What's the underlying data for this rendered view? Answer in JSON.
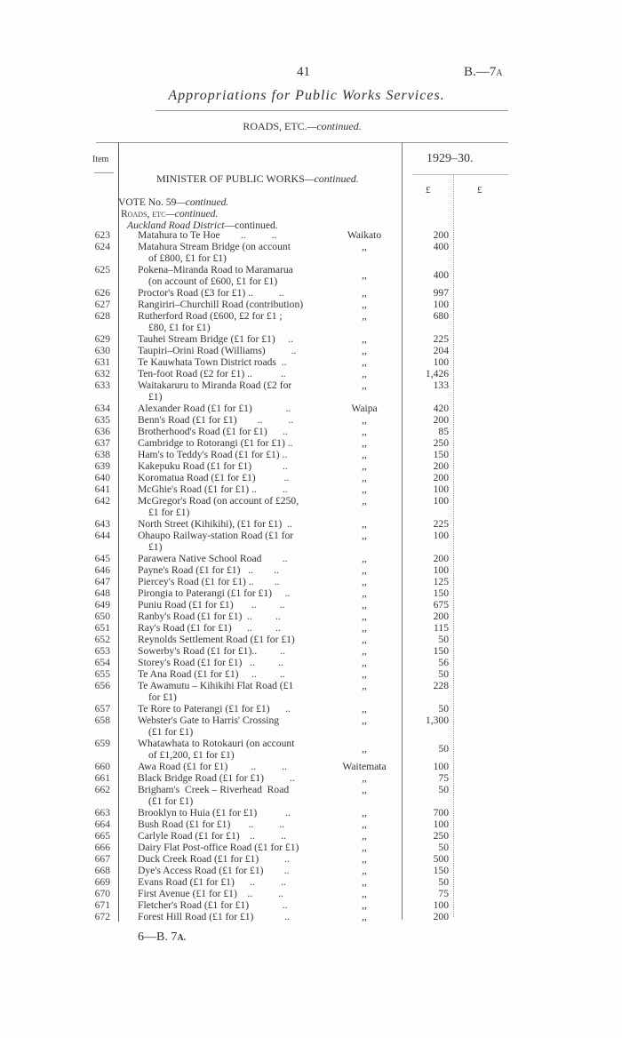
{
  "header": {
    "page_number": "41",
    "doc_ref": "B.—7",
    "doc_ref_suffix": "A"
  },
  "title": "Appropriations for Public Works Services.",
  "subtitle_main": "ROADS, ETC.",
  "subtitle_cont": "—continued.",
  "table": {
    "item_header": "Item",
    "year_header": "1929–30.",
    "currency_1": "£",
    "currency_2": "£",
    "minister": "MINISTER OF PUBLIC WORKS",
    "minister_cont": "—continued.",
    "vote": "VOTE No. 59",
    "vote_cont": "—continued.",
    "section": "Roads, etc",
    "section_cont": "—continued.",
    "district_heading": "Auckland Road District",
    "district_heading_cont": "—continued.",
    "rows": [
      {
        "item": "623",
        "lines": [
          "Matahura to Te Hoe        ..          .."
        ],
        "district": "Waikato",
        "amount": "200"
      },
      {
        "item": "624",
        "lines": [
          "Matahura Stream Bridge (on account",
          "of £800, £1 for £1)"
        ],
        "district": ",,",
        "amount": "400"
      },
      {
        "item": "625",
        "lines": [
          "Pokena–Miranda Road to Maramarua",
          "(on account of £600, £1 for £1)"
        ],
        "district": ",,",
        "amount": "400",
        "mid": true
      },
      {
        "item": "626",
        "lines": [
          "Proctor's Road (£3 for £1) ..          .."
        ],
        "district": ",,",
        "amount": "997"
      },
      {
        "item": "627",
        "lines": [
          "Rangiriri–Churchill Road (contribution)"
        ],
        "district": ",,",
        "amount": "100"
      },
      {
        "item": "628",
        "lines": [
          "Rutherford Road (£600, £2 for £1 ;",
          "£80, £1 for £1)"
        ],
        "district": ",,",
        "amount": "680"
      },
      {
        "item": "629",
        "lines": [
          "Tauhei Stream Bridge (£1 for £1)     .."
        ],
        "district": ",,",
        "amount": "225"
      },
      {
        "item": "630",
        "lines": [
          "Taupiri–Orini Road (Williams)          .."
        ],
        "district": ",,",
        "amount": "204"
      },
      {
        "item": "631",
        "lines": [
          "Te Kauwhata Town District roads  .."
        ],
        "district": ",,",
        "amount": "100"
      },
      {
        "item": "632",
        "lines": [
          "Ten-foot Road (£2 for £1) ..           .."
        ],
        "district": ",,",
        "amount": "1,426"
      },
      {
        "item": "633",
        "lines": [
          "Waitakaruru to Miranda Road (£2 for",
          "£1)"
        ],
        "district": ",,",
        "amount": "133"
      },
      {
        "item": "634",
        "lines": [
          "Alexander Road (£1 for £1)             .."
        ],
        "district": "Waipa",
        "amount": "420"
      },
      {
        "item": "635",
        "lines": [
          "Benn's Road (£1 for £1)        ..          .."
        ],
        "district": ",,",
        "amount": "200"
      },
      {
        "item": "636",
        "lines": [
          "Brotherhood's Road (£1 for £1)      .."
        ],
        "district": ",,",
        "amount": "85"
      },
      {
        "item": "637",
        "lines": [
          "Cambridge to Rotorangi (£1 for £1) .."
        ],
        "district": ",,",
        "amount": "250"
      },
      {
        "item": "638",
        "lines": [
          "Ham's to Teddy's Road (£1 for £1) .."
        ],
        "district": ",,",
        "amount": "150"
      },
      {
        "item": "639",
        "lines": [
          "Kakepuku Road (£1 for £1)            .."
        ],
        "district": ",,",
        "amount": "200"
      },
      {
        "item": "640",
        "lines": [
          "Koromatua Road (£1 for £1)           .."
        ],
        "district": ",,",
        "amount": "200"
      },
      {
        "item": "641",
        "lines": [
          "McGhie's Road (£1 for £1) ..          .."
        ],
        "district": ",,",
        "amount": "100"
      },
      {
        "item": "642",
        "lines": [
          "McGregor's Road (on account of £250,",
          "£1 for £1)"
        ],
        "district": ",,",
        "amount": "100"
      },
      {
        "item": "643",
        "lines": [
          "North Street (Kihikihi), (£1 for £1)  .."
        ],
        "district": ",,",
        "amount": "225"
      },
      {
        "item": "644",
        "lines": [
          "Ohaupo Railway-station Road (£1 for",
          "£1)"
        ],
        "district": ",,",
        "amount": "100"
      },
      {
        "item": "645",
        "lines": [
          "Parawera Native School Road        .."
        ],
        "district": ",,",
        "amount": "200"
      },
      {
        "item": "646",
        "lines": [
          "Payne's Road (£1 for £1)   ..        .."
        ],
        "district": ",,",
        "amount": "100"
      },
      {
        "item": "647",
        "lines": [
          "Piercey's Road (£1 for £1) ..        .."
        ],
        "district": ",,",
        "amount": "125"
      },
      {
        "item": "648",
        "lines": [
          "Pirongia to Paterangi (£1 for £1)     .."
        ],
        "district": ",,",
        "amount": "150"
      },
      {
        "item": "649",
        "lines": [
          "Puniu Road (£1 for £1)       ..         .."
        ],
        "district": ",,",
        "amount": "675"
      },
      {
        "item": "650",
        "lines": [
          "Ranby's Road (£1 for £1)  ..         .."
        ],
        "district": ",,",
        "amount": "200"
      },
      {
        "item": "651",
        "lines": [
          "Ray's Road (£1 for £1)      ..         .."
        ],
        "district": ",,",
        "amount": "115"
      },
      {
        "item": "652",
        "lines": [
          "Reynolds Settlement Road (£1 for £1)"
        ],
        "district": ",,",
        "amount": "50"
      },
      {
        "item": "653",
        "lines": [
          "Sowerby's Road (£1 for £1)..         .."
        ],
        "district": ",,",
        "amount": "150"
      },
      {
        "item": "654",
        "lines": [
          "Storey's Road (£1 for £1)   ..         .."
        ],
        "district": ",,",
        "amount": "56"
      },
      {
        "item": "655",
        "lines": [
          "Te Ana Road (£1 for £1)     ..         .."
        ],
        "district": ",,",
        "amount": "50"
      },
      {
        "item": "656",
        "lines": [
          "Te Awamutu – Kihikihi Flat Road (£1",
          "for £1)"
        ],
        "district": ",,",
        "amount": "228"
      },
      {
        "item": "657",
        "lines": [
          "Te Rore to Paterangi (£1 for £1)      .."
        ],
        "district": ",,",
        "amount": "50"
      },
      {
        "item": "658",
        "lines": [
          "Webster's Gate to Harris' Crossing",
          "(£1 for £1)"
        ],
        "district": ",,",
        "amount": "1,300"
      },
      {
        "item": "659",
        "lines": [
          "Whatawhata to Rotokauri (on account",
          "of £1,200, £1 for £1)"
        ],
        "district": ",,",
        "amount": "50",
        "mid": true
      },
      {
        "item": "660",
        "lines": [
          "Awa Road (£1 for £1)         ..          .."
        ],
        "district": "Waitemata",
        "amount": "100"
      },
      {
        "item": "661",
        "lines": [
          "Black Bridge Road (£1 for £1)          .."
        ],
        "district": ",,",
        "amount": "75"
      },
      {
        "item": "662",
        "lines": [
          "Brigham's  Creek – Riverhead  Road",
          "(£1 for £1)"
        ],
        "district": ",,",
        "amount": "50"
      },
      {
        "item": "663",
        "lines": [
          "Brooklyn to Huia (£1 for £1)           .."
        ],
        "district": ",,",
        "amount": "700"
      },
      {
        "item": "664",
        "lines": [
          "Bush Road (£1 for £1)       ..          .."
        ],
        "district": ",,",
        "amount": "100"
      },
      {
        "item": "665",
        "lines": [
          "Carlyle Road (£1 for £1)    ..          .."
        ],
        "district": ",,",
        "amount": "250"
      },
      {
        "item": "666",
        "lines": [
          "Dairy Flat Post-office Road (£1 for £1)"
        ],
        "district": ",,",
        "amount": "50"
      },
      {
        "item": "667",
        "lines": [
          "Duck Creek Road (£1 for £1)          .."
        ],
        "district": ",,",
        "amount": "500"
      },
      {
        "item": "668",
        "lines": [
          "Dye's Access Road (£1 for £1)        .."
        ],
        "district": ",,",
        "amount": "150"
      },
      {
        "item": "669",
        "lines": [
          "Evans Road (£1 for £1)      ..          .."
        ],
        "district": ",,",
        "amount": "50"
      },
      {
        "item": "670",
        "lines": [
          "First Avenue (£1 for £1)    ..          .."
        ],
        "district": ",,",
        "amount": "75"
      },
      {
        "item": "671",
        "lines": [
          "Fletcher's Road (£1 for £1)             .."
        ],
        "district": ",,",
        "amount": "100"
      },
      {
        "item": "672",
        "lines": [
          "Forest Hill Road (£1 for £1)            .."
        ],
        "district": ",,",
        "amount": "200"
      }
    ]
  },
  "footer": {
    "signature": "6—B. 7",
    "signature_suffix": "A."
  }
}
